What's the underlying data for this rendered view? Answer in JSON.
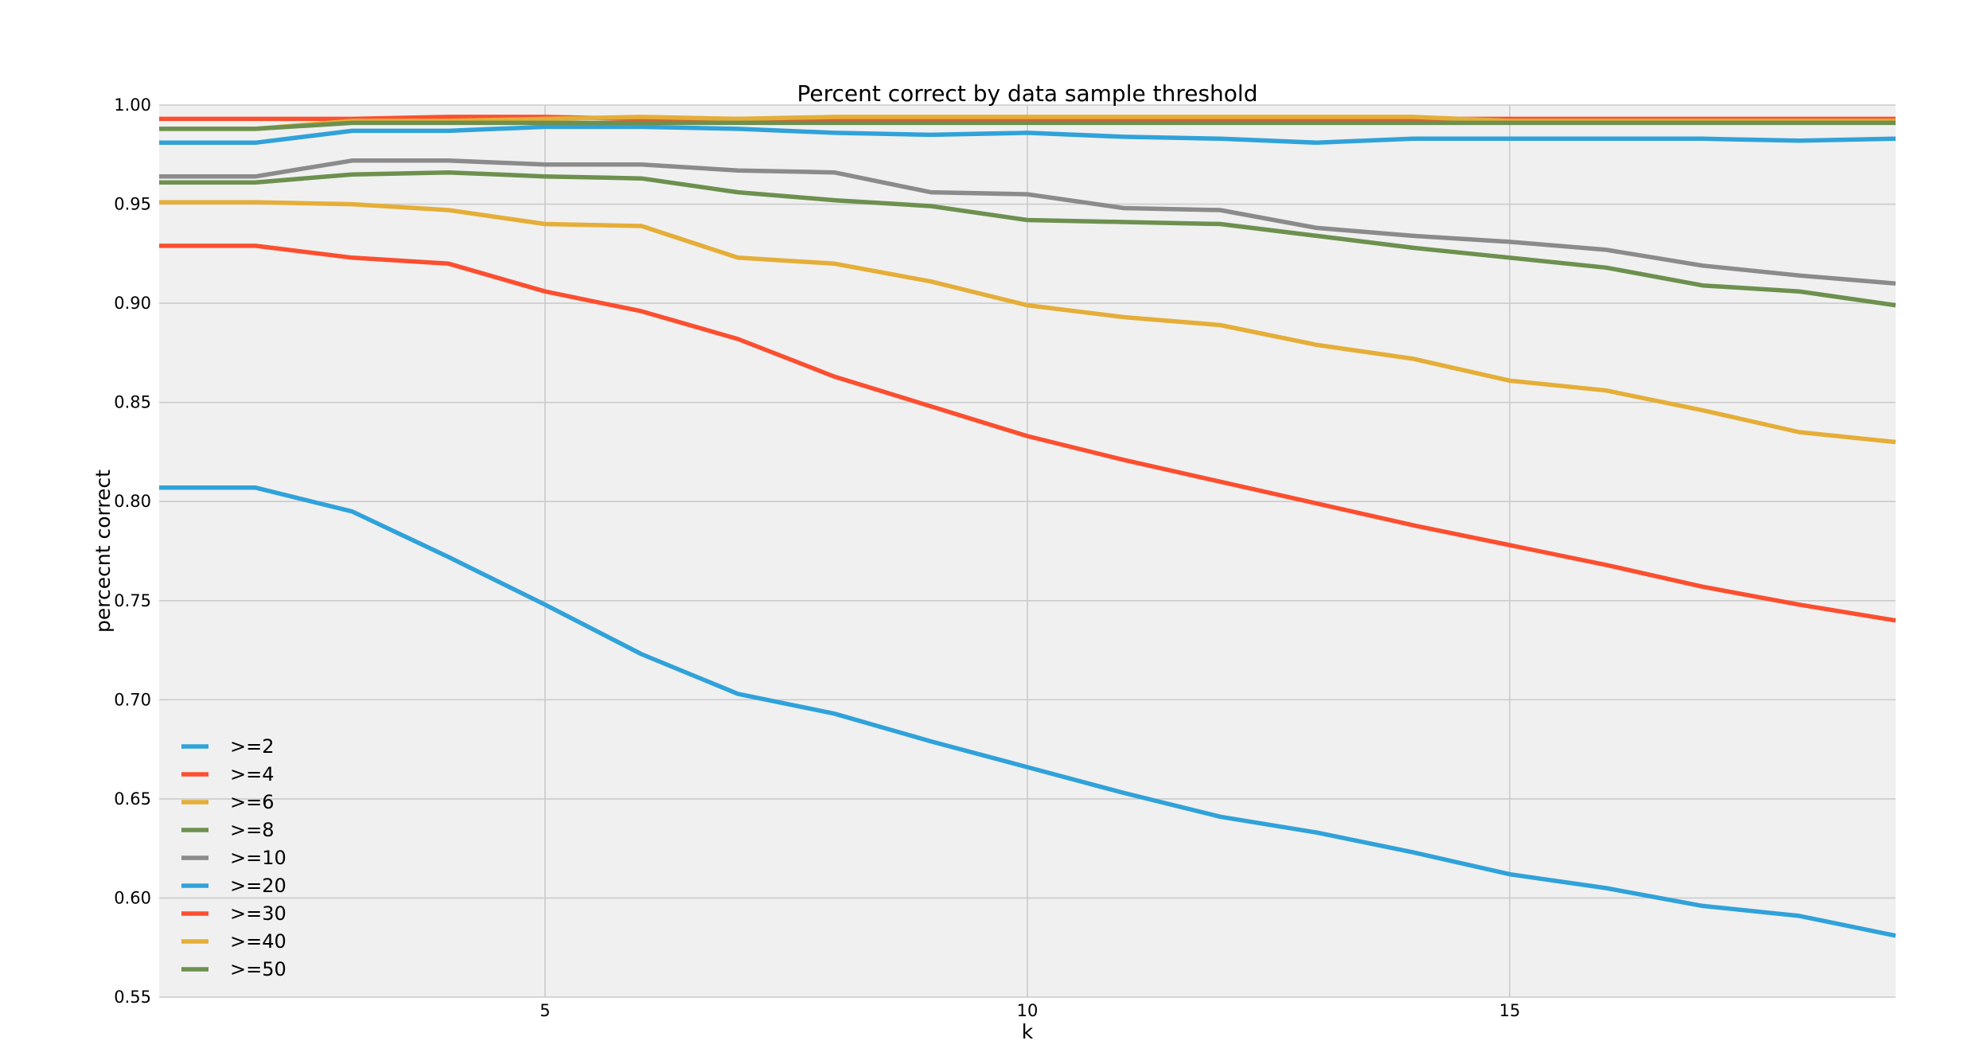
{
  "chart_data": {
    "type": "line",
    "title": "Percent correct by data sample threshold",
    "xlabel": "k",
    "ylabel": "percecnt correct",
    "xlim": [
      1,
      19
    ],
    "ylim": [
      0.55,
      1.0
    ],
    "xticks": [
      5,
      10,
      15
    ],
    "yticks": [
      0.55,
      0.6,
      0.65,
      0.7,
      0.75,
      0.8,
      0.85,
      0.9,
      0.95,
      1.0
    ],
    "ytick_format": 2,
    "grid": true,
    "background": "#f0f0f0",
    "legend_position": "lower-left",
    "x": [
      1,
      2,
      3,
      4,
      5,
      6,
      7,
      8,
      9,
      10,
      11,
      12,
      13,
      14,
      15,
      16,
      17,
      18,
      19
    ],
    "series": [
      {
        "name": ">=2",
        "color": "#30a2da",
        "values": [
          0.807,
          0.807,
          0.795,
          0.772,
          0.748,
          0.723,
          0.703,
          0.693,
          0.679,
          0.666,
          0.653,
          0.641,
          0.633,
          0.623,
          0.612,
          0.605,
          0.596,
          0.591,
          0.581
        ]
      },
      {
        "name": ">=4",
        "color": "#fc4f30",
        "values": [
          0.929,
          0.929,
          0.923,
          0.92,
          0.906,
          0.896,
          0.882,
          0.863,
          0.848,
          0.833,
          0.821,
          0.81,
          0.799,
          0.788,
          0.778,
          0.768,
          0.757,
          0.748,
          0.74
        ]
      },
      {
        "name": ">=6",
        "color": "#e5ae38",
        "values": [
          0.951,
          0.951,
          0.95,
          0.947,
          0.94,
          0.939,
          0.923,
          0.92,
          0.911,
          0.899,
          0.893,
          0.889,
          0.879,
          0.872,
          0.861,
          0.856,
          0.846,
          0.835,
          0.83
        ]
      },
      {
        "name": ">=8",
        "color": "#6d904f",
        "values": [
          0.961,
          0.961,
          0.965,
          0.966,
          0.964,
          0.963,
          0.956,
          0.952,
          0.949,
          0.942,
          0.941,
          0.94,
          0.934,
          0.928,
          0.923,
          0.918,
          0.909,
          0.906,
          0.899
        ]
      },
      {
        "name": ">=10",
        "color": "#8b8b8b",
        "values": [
          0.964,
          0.964,
          0.972,
          0.972,
          0.97,
          0.97,
          0.967,
          0.966,
          0.956,
          0.955,
          0.948,
          0.947,
          0.938,
          0.934,
          0.931,
          0.927,
          0.919,
          0.914,
          0.91
        ]
      },
      {
        "name": ">=20",
        "color": "#30a2da",
        "values": [
          0.981,
          0.981,
          0.987,
          0.987,
          0.989,
          0.989,
          0.988,
          0.986,
          0.985,
          0.986,
          0.984,
          0.983,
          0.981,
          0.983,
          0.983,
          0.983,
          0.983,
          0.982,
          0.983
        ]
      },
      {
        "name": ">=30",
        "color": "#fc4f30",
        "values": [
          0.993,
          0.993,
          0.993,
          0.994,
          0.994,
          0.993,
          0.993,
          0.993,
          0.993,
          0.993,
          0.993,
          0.993,
          0.993,
          0.993,
          0.993,
          0.993,
          0.993,
          0.993,
          0.993
        ]
      },
      {
        "name": ">=40",
        "color": "#e5ae38",
        "values": [
          0.988,
          0.988,
          0.992,
          0.992,
          0.993,
          0.994,
          0.993,
          0.994,
          0.994,
          0.994,
          0.994,
          0.994,
          0.994,
          0.994,
          0.992,
          0.992,
          0.992,
          0.992,
          0.992
        ]
      },
      {
        "name": ">=50",
        "color": "#6d904f",
        "values": [
          0.988,
          0.988,
          0.991,
          0.991,
          0.991,
          0.991,
          0.991,
          0.991,
          0.991,
          0.991,
          0.991,
          0.991,
          0.991,
          0.991,
          0.991,
          0.991,
          0.991,
          0.991,
          0.991
        ]
      }
    ]
  }
}
